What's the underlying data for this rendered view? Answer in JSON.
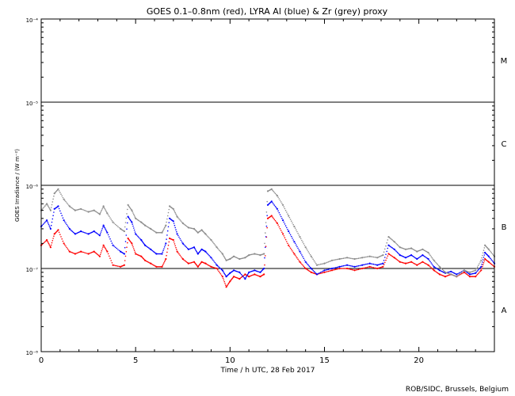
{
  "chart_data": {
    "type": "scatter",
    "title": "GOES 0.1–0.8nm (red), LYRA Al (blue) & Zr (grey) proxy",
    "xlabel": "Time / h UTC, 28 Feb 2017",
    "ylabel": "GOES Irradiance / (W m⁻²)",
    "credit": "ROB/SIDC, Brussels, Belgium",
    "xlim": [
      0,
      24
    ],
    "ylim": [
      1e-08,
      0.0001
    ],
    "yscale": "log",
    "x_ticks": [
      {
        "value": 0,
        "label": "0"
      },
      {
        "value": 5,
        "label": "5"
      },
      {
        "value": 10,
        "label": "10"
      },
      {
        "value": 15,
        "label": "15"
      },
      {
        "value": 20,
        "label": "20"
      }
    ],
    "y_ticks": [
      {
        "value": 1e-08,
        "label": "10⁻⁸"
      },
      {
        "value": 1e-07,
        "label": "10⁻⁷"
      },
      {
        "value": 1e-06,
        "label": "10⁻⁶"
      },
      {
        "value": 1e-05,
        "label": "10⁻⁵"
      },
      {
        "value": 0.0001,
        "label": "10⁻⁴"
      }
    ],
    "threshold_lines": [
      1e-07,
      1e-06,
      1e-05
    ],
    "flare_classes": [
      {
        "label": "A",
        "value": 3.2e-08
      },
      {
        "label": "B",
        "value": 3.2e-07
      },
      {
        "label": "C",
        "value": 3.2e-06
      },
      {
        "label": "M",
        "value": 3.2e-05
      }
    ],
    "series": [
      {
        "name": "GOES 0.1–0.8nm",
        "color": "#ff0000",
        "points": [
          [
            0,
            1.9e-07
          ],
          [
            0.3,
            2.2e-07
          ],
          [
            0.5,
            1.8e-07
          ],
          [
            0.7,
            2.6e-07
          ],
          [
            0.9,
            2.9e-07
          ],
          [
            1.2,
            2e-07
          ],
          [
            1.5,
            1.6e-07
          ],
          [
            1.8,
            1.5e-07
          ],
          [
            2.1,
            1.6e-07
          ],
          [
            2.5,
            1.5e-07
          ],
          [
            2.8,
            1.6e-07
          ],
          [
            3.1,
            1.4e-07
          ],
          [
            3.3,
            1.9e-07
          ],
          [
            3.5,
            1.6e-07
          ],
          [
            3.8,
            1.1e-07
          ],
          [
            4.2,
            1.05e-07
          ],
          [
            4.4,
            1.1e-07
          ],
          [
            4.6,
            2.3e-07
          ],
          [
            4.8,
            2e-07
          ],
          [
            5.0,
            1.5e-07
          ],
          [
            5.3,
            1.4e-07
          ],
          [
            5.5,
            1.25e-07
          ],
          [
            5.8,
            1.15e-07
          ],
          [
            6.1,
            1.05e-07
          ],
          [
            6.4,
            1.05e-07
          ],
          [
            6.6,
            1.3e-07
          ],
          [
            6.8,
            2.3e-07
          ],
          [
            7.0,
            2.2e-07
          ],
          [
            7.2,
            1.6e-07
          ],
          [
            7.5,
            1.3e-07
          ],
          [
            7.8,
            1.15e-07
          ],
          [
            8.1,
            1.2e-07
          ],
          [
            8.3,
            1.05e-07
          ],
          [
            8.5,
            1.2e-07
          ],
          [
            8.7,
            1.15e-07
          ],
          [
            9.0,
            1.05e-07
          ],
          [
            9.3,
            1e-07
          ],
          [
            9.6,
            8e-08
          ],
          [
            9.8,
            6e-08
          ],
          [
            10.0,
            7e-08
          ],
          [
            10.2,
            8e-08
          ],
          [
            10.5,
            7.5e-08
          ],
          [
            10.8,
            8.5e-08
          ],
          [
            11.0,
            8e-08
          ],
          [
            11.3,
            8.5e-08
          ],
          [
            11.6,
            8e-08
          ],
          [
            11.8,
            8.5e-08
          ],
          [
            12.0,
            4e-07
          ],
          [
            12.2,
            4.3e-07
          ],
          [
            12.5,
            3.5e-07
          ],
          [
            12.8,
            2.6e-07
          ],
          [
            13.1,
            1.9e-07
          ],
          [
            13.4,
            1.5e-07
          ],
          [
            13.7,
            1.2e-07
          ],
          [
            14.0,
            1e-07
          ],
          [
            14.3,
            9e-08
          ],
          [
            14.6,
            8.5e-08
          ],
          [
            15.0,
            9e-08
          ],
          [
            15.4,
            9.5e-08
          ],
          [
            15.8,
            1e-07
          ],
          [
            16.2,
            1e-07
          ],
          [
            16.6,
            9.5e-08
          ],
          [
            17.0,
            1e-07
          ],
          [
            17.4,
            1.05e-07
          ],
          [
            17.8,
            1e-07
          ],
          [
            18.1,
            1.05e-07
          ],
          [
            18.4,
            1.5e-07
          ],
          [
            18.7,
            1.35e-07
          ],
          [
            19.0,
            1.2e-07
          ],
          [
            19.3,
            1.15e-07
          ],
          [
            19.6,
            1.2e-07
          ],
          [
            19.9,
            1.1e-07
          ],
          [
            20.2,
            1.2e-07
          ],
          [
            20.5,
            1.1e-07
          ],
          [
            20.8,
            9.5e-08
          ],
          [
            21.1,
            8.5e-08
          ],
          [
            21.4,
            8e-08
          ],
          [
            21.7,
            8.5e-08
          ],
          [
            22.0,
            8e-08
          ],
          [
            22.4,
            9e-08
          ],
          [
            22.7,
            8e-08
          ],
          [
            23.0,
            8e-08
          ],
          [
            23.3,
            9.5e-08
          ],
          [
            23.5,
            1.3e-07
          ],
          [
            23.7,
            1.2e-07
          ],
          [
            24.0,
            1.05e-07
          ]
        ]
      },
      {
        "name": "LYRA Al proxy",
        "color": "#0000ff",
        "points": [
          [
            0,
            3.2e-07
          ],
          [
            0.3,
            3.8e-07
          ],
          [
            0.5,
            3e-07
          ],
          [
            0.7,
            5.2e-07
          ],
          [
            0.9,
            5.6e-07
          ],
          [
            1.2,
            3.8e-07
          ],
          [
            1.5,
            3e-07
          ],
          [
            1.8,
            2.6e-07
          ],
          [
            2.1,
            2.8e-07
          ],
          [
            2.5,
            2.6e-07
          ],
          [
            2.8,
            2.8e-07
          ],
          [
            3.1,
            2.5e-07
          ],
          [
            3.3,
            3.3e-07
          ],
          [
            3.5,
            2.7e-07
          ],
          [
            3.8,
            1.9e-07
          ],
          [
            4.2,
            1.6e-07
          ],
          [
            4.4,
            1.5e-07
          ],
          [
            4.6,
            4.2e-07
          ],
          [
            4.8,
            3.6e-07
          ],
          [
            5.0,
            2.6e-07
          ],
          [
            5.3,
            2.2e-07
          ],
          [
            5.5,
            1.9e-07
          ],
          [
            5.8,
            1.7e-07
          ],
          [
            6.1,
            1.5e-07
          ],
          [
            6.4,
            1.5e-07
          ],
          [
            6.6,
            2e-07
          ],
          [
            6.8,
            4e-07
          ],
          [
            7.0,
            3.7e-07
          ],
          [
            7.2,
            2.6e-07
          ],
          [
            7.5,
            2e-07
          ],
          [
            7.8,
            1.7e-07
          ],
          [
            8.1,
            1.8e-07
          ],
          [
            8.3,
            1.5e-07
          ],
          [
            8.5,
            1.7e-07
          ],
          [
            8.7,
            1.6e-07
          ],
          [
            9.0,
            1.35e-07
          ],
          [
            9.3,
            1.1e-07
          ],
          [
            9.6,
            9.5e-08
          ],
          [
            9.8,
            8e-08
          ],
          [
            10.0,
            8.8e-08
          ],
          [
            10.2,
            9.5e-08
          ],
          [
            10.5,
            9e-08
          ],
          [
            10.8,
            7.5e-08
          ],
          [
            11.0,
            9e-08
          ],
          [
            11.3,
            9.5e-08
          ],
          [
            11.6,
            9e-08
          ],
          [
            11.8,
            1e-07
          ],
          [
            12.0,
            5.8e-07
          ],
          [
            12.2,
            6.4e-07
          ],
          [
            12.5,
            5.2e-07
          ],
          [
            12.8,
            3.8e-07
          ],
          [
            13.1,
            2.8e-07
          ],
          [
            13.4,
            2.1e-07
          ],
          [
            13.7,
            1.6e-07
          ],
          [
            14.0,
            1.2e-07
          ],
          [
            14.3,
            1e-07
          ],
          [
            14.6,
            8.5e-08
          ],
          [
            15.0,
            9.5e-08
          ],
          [
            15.4,
            1e-07
          ],
          [
            15.8,
            1.05e-07
          ],
          [
            16.2,
            1.1e-07
          ],
          [
            16.6,
            1.05e-07
          ],
          [
            17.0,
            1.1e-07
          ],
          [
            17.4,
            1.15e-07
          ],
          [
            17.8,
            1.1e-07
          ],
          [
            18.1,
            1.15e-07
          ],
          [
            18.4,
            1.9e-07
          ],
          [
            18.7,
            1.7e-07
          ],
          [
            19.0,
            1.45e-07
          ],
          [
            19.3,
            1.35e-07
          ],
          [
            19.6,
            1.45e-07
          ],
          [
            19.9,
            1.3e-07
          ],
          [
            20.2,
            1.45e-07
          ],
          [
            20.5,
            1.3e-07
          ],
          [
            20.8,
            1.05e-07
          ],
          [
            21.1,
            9.5e-08
          ],
          [
            21.4,
            8.8e-08
          ],
          [
            21.7,
            9.2e-08
          ],
          [
            22.0,
            8.5e-08
          ],
          [
            22.4,
            9.5e-08
          ],
          [
            22.7,
            8.5e-08
          ],
          [
            23.0,
            8.8e-08
          ],
          [
            23.3,
            1.05e-07
          ],
          [
            23.5,
            1.55e-07
          ],
          [
            23.7,
            1.4e-07
          ],
          [
            24.0,
            1.15e-07
          ]
        ]
      },
      {
        "name": "LYRA Zr proxy",
        "color": "#8c8c8c",
        "points": [
          [
            0,
            5e-07
          ],
          [
            0.3,
            6e-07
          ],
          [
            0.5,
            5e-07
          ],
          [
            0.7,
            8e-07
          ],
          [
            0.9,
            9e-07
          ],
          [
            1.2,
            6.8e-07
          ],
          [
            1.5,
            5.6e-07
          ],
          [
            1.8,
            5e-07
          ],
          [
            2.1,
            5.2e-07
          ],
          [
            2.5,
            4.8e-07
          ],
          [
            2.8,
            5e-07
          ],
          [
            3.1,
            4.5e-07
          ],
          [
            3.3,
            5.6e-07
          ],
          [
            3.5,
            4.6e-07
          ],
          [
            3.8,
            3.6e-07
          ],
          [
            4.2,
            3e-07
          ],
          [
            4.4,
            2.8e-07
          ],
          [
            4.6,
            5.8e-07
          ],
          [
            4.8,
            5e-07
          ],
          [
            5.0,
            4e-07
          ],
          [
            5.3,
            3.6e-07
          ],
          [
            5.5,
            3.3e-07
          ],
          [
            5.8,
            3e-07
          ],
          [
            6.1,
            2.7e-07
          ],
          [
            6.4,
            2.7e-07
          ],
          [
            6.6,
            3.3e-07
          ],
          [
            6.8,
            5.6e-07
          ],
          [
            7.0,
            5.2e-07
          ],
          [
            7.2,
            4.2e-07
          ],
          [
            7.5,
            3.5e-07
          ],
          [
            7.8,
            3.1e-07
          ],
          [
            8.1,
            3e-07
          ],
          [
            8.3,
            2.7e-07
          ],
          [
            8.5,
            2.9e-07
          ],
          [
            8.7,
            2.6e-07
          ],
          [
            9.0,
            2.2e-07
          ],
          [
            9.3,
            1.8e-07
          ],
          [
            9.6,
            1.5e-07
          ],
          [
            9.8,
            1.25e-07
          ],
          [
            10.0,
            1.3e-07
          ],
          [
            10.2,
            1.4e-07
          ],
          [
            10.5,
            1.3e-07
          ],
          [
            10.8,
            1.35e-07
          ],
          [
            11.0,
            1.45e-07
          ],
          [
            11.3,
            1.5e-07
          ],
          [
            11.6,
            1.45e-07
          ],
          [
            11.8,
            1.5e-07
          ],
          [
            12.0,
            8.5e-07
          ],
          [
            12.2,
            9e-07
          ],
          [
            12.5,
            7.5e-07
          ],
          [
            12.8,
            5.8e-07
          ],
          [
            13.1,
            4.3e-07
          ],
          [
            13.4,
            3.2e-07
          ],
          [
            13.7,
            2.4e-07
          ],
          [
            14.0,
            1.8e-07
          ],
          [
            14.3,
            1.4e-07
          ],
          [
            14.6,
            1.1e-07
          ],
          [
            15.0,
            1.15e-07
          ],
          [
            15.4,
            1.25e-07
          ],
          [
            15.8,
            1.3e-07
          ],
          [
            16.2,
            1.35e-07
          ],
          [
            16.6,
            1.3e-07
          ],
          [
            17.0,
            1.35e-07
          ],
          [
            17.4,
            1.4e-07
          ],
          [
            17.8,
            1.35e-07
          ],
          [
            18.1,
            1.45e-07
          ],
          [
            18.4,
            2.4e-07
          ],
          [
            18.7,
            2.1e-07
          ],
          [
            19.0,
            1.8e-07
          ],
          [
            19.3,
            1.7e-07
          ],
          [
            19.6,
            1.75e-07
          ],
          [
            19.9,
            1.6e-07
          ],
          [
            20.2,
            1.7e-07
          ],
          [
            20.5,
            1.55e-07
          ],
          [
            20.8,
            1.25e-07
          ],
          [
            21.1,
            1.05e-07
          ],
          [
            21.4,
            9e-08
          ],
          [
            21.7,
            8.5e-08
          ],
          [
            22.0,
            8e-08
          ],
          [
            22.4,
            9.5e-08
          ],
          [
            22.7,
            9e-08
          ],
          [
            23.0,
            9.5e-08
          ],
          [
            23.3,
            1.25e-07
          ],
          [
            23.5,
            1.9e-07
          ],
          [
            23.7,
            1.7e-07
          ],
          [
            24.0,
            1.4e-07
          ]
        ]
      }
    ]
  }
}
